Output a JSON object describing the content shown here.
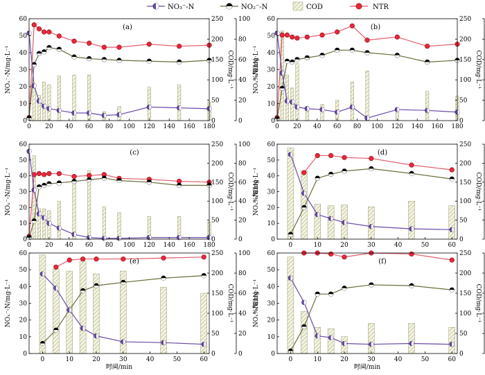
{
  "legend": {
    "nitrate": "NO₃⁻-N",
    "nitrite": "NO₂⁻-N",
    "cod": "COD",
    "ntr": "NTR"
  },
  "colors": {
    "nitrate": "#6a4aa8",
    "nitrite": "#6b6b3a",
    "ntr": "#e8283a",
    "cod_hatch": "#a8a878"
  },
  "xlabel": "时间/min",
  "left_ylabel": "NOₓ⁻-N/mg·L⁻¹",
  "cod_ylabel": "COD/mg·L⁻¹",
  "ntr_ylabel": "NTR/%",
  "chart_data": [
    {
      "panel": "(a)",
      "type": "bar+line",
      "xlim": [
        0,
        180
      ],
      "xticks": [
        0,
        20,
        40,
        60,
        80,
        100,
        120,
        140,
        160,
        180
      ],
      "left_ylim": [
        0,
        60
      ],
      "left_yticks": [
        0,
        10,
        20,
        30,
        40,
        50,
        60
      ],
      "cod_ylim": [
        0,
        250
      ],
      "cod_yticks": [
        0,
        50,
        100,
        150,
        200,
        250
      ],
      "ntr_ylim": [
        0,
        100
      ],
      "ntr_yticks": [
        0,
        20,
        40,
        60,
        80,
        100
      ],
      "cod_bars": {
        "x": [
          5,
          10,
          15,
          20,
          30,
          45,
          60,
          75,
          90,
          120,
          150,
          180
        ],
        "values": [
          85,
          62,
          95,
          88,
          110,
          112,
          112,
          22,
          35,
          82,
          88,
          45
        ]
      },
      "nitrate": {
        "x": [
          0,
          5,
          10,
          15,
          20,
          30,
          45,
          60,
          75,
          90,
          120,
          150,
          180
        ],
        "values": [
          51.5,
          20.5,
          11.5,
          8.5,
          7,
          6,
          4.5,
          4.5,
          3,
          3.5,
          8,
          7.5,
          7
        ]
      },
      "nitrite": {
        "x": [
          0,
          5,
          10,
          15,
          20,
          30,
          45,
          60,
          75,
          90,
          120,
          150,
          180
        ],
        "values": [
          1.5,
          33,
          39.5,
          40.5,
          43,
          42,
          37.5,
          36.5,
          36,
          35.5,
          35,
          34.5,
          35.5
        ]
      },
      "ntr": {
        "x": [
          0,
          5,
          10,
          15,
          20,
          30,
          45,
          60,
          75,
          90,
          120,
          150,
          180
        ],
        "values": [
          3,
          94,
          90,
          87,
          87,
          83,
          78,
          76,
          72,
          72,
          75,
          73,
          74
        ]
      }
    },
    {
      "panel": "(b)",
      "type": "bar+line",
      "xlim": [
        0,
        180
      ],
      "xticks": [
        0,
        20,
        40,
        60,
        80,
        100,
        120,
        140,
        160,
        180
      ],
      "left_ylim": [
        0,
        60
      ],
      "left_yticks": [
        0,
        10,
        20,
        30,
        40,
        50,
        60
      ],
      "cod_ylim": [
        0,
        250
      ],
      "cod_yticks": [
        0,
        50,
        100,
        150,
        200,
        250
      ],
      "ntr_ylim": [
        0,
        100
      ],
      "ntr_yticks": [
        0,
        20,
        40,
        60,
        80,
        100
      ],
      "cod_bars": {
        "x": [
          5,
          10,
          15,
          20,
          30,
          45,
          60,
          75,
          90,
          120,
          150,
          180
        ],
        "values": [
          220,
          112,
          80,
          140,
          35,
          40,
          50,
          95,
          122,
          25,
          72,
          60
        ]
      },
      "nitrate": {
        "x": [
          0,
          5,
          10,
          15,
          20,
          30,
          45,
          60,
          75,
          90,
          120,
          150,
          180
        ],
        "values": [
          51.5,
          28,
          11.5,
          11,
          8,
          7,
          6.5,
          5,
          8,
          1.5,
          6.5,
          6,
          5
        ]
      },
      "nitrite": {
        "x": [
          0,
          5,
          10,
          15,
          20,
          30,
          45,
          60,
          75,
          90,
          120,
          150,
          180
        ],
        "values": [
          1,
          19,
          35,
          34.5,
          36,
          37,
          38.5,
          41.5,
          41.5,
          40,
          38.5,
          34.5,
          35.5
        ]
      },
      "ntr": {
        "x": [
          0,
          5,
          10,
          15,
          20,
          30,
          45,
          60,
          75,
          90,
          120,
          150,
          180
        ],
        "values": [
          3,
          84,
          84,
          82,
          81,
          82,
          84,
          87,
          93,
          79,
          82,
          73,
          75
        ]
      }
    },
    {
      "panel": "(c)",
      "type": "bar+line",
      "xlim": [
        0,
        180
      ],
      "xticks": [
        0,
        20,
        40,
        60,
        80,
        100,
        120,
        140,
        160,
        180
      ],
      "left_ylim": [
        0,
        60
      ],
      "left_yticks": [
        0,
        10,
        20,
        30,
        40,
        50,
        60
      ],
      "cod_ylim": [
        0,
        250
      ],
      "cod_yticks": [
        0,
        50,
        100,
        150,
        200,
        250
      ],
      "ntr_ylim": [
        0,
        100
      ],
      "ntr_yticks": [
        0,
        20,
        40,
        60,
        80,
        100
      ],
      "cod_bars": {
        "x": [
          5,
          10,
          15,
          20,
          30,
          45,
          60,
          75,
          90,
          120,
          150,
          180
        ],
        "values": [
          220,
          80,
          80,
          75,
          100,
          150,
          180,
          85,
          70,
          60,
          60,
          45
        ]
      },
      "nitrate": {
        "x": [
          0,
          5,
          10,
          15,
          20,
          30,
          45,
          60,
          75,
          90,
          120,
          150,
          180
        ],
        "values": [
          55.5,
          31,
          16,
          13.5,
          10,
          7,
          3,
          1,
          0.5,
          0.5,
          1,
          1,
          1
        ]
      },
      "nitrite": {
        "x": [
          0,
          5,
          10,
          15,
          20,
          30,
          45,
          60,
          75,
          90,
          120,
          150,
          180
        ],
        "values": [
          1,
          11.5,
          33,
          34,
          35,
          35.5,
          36.5,
          37.5,
          38.5,
          37,
          36,
          34,
          34
        ]
      },
      "ntr": {
        "x": [
          0,
          5,
          10,
          15,
          20,
          30,
          45,
          60,
          75,
          90,
          120,
          150,
          180
        ],
        "values": [
          3,
          68,
          69,
          68,
          69,
          69,
          66,
          67,
          68,
          64,
          63,
          61,
          60
        ]
      }
    },
    {
      "panel": "(d)",
      "type": "bar+line",
      "xlim": [
        -5,
        62
      ],
      "xticks": [
        0,
        10,
        20,
        30,
        40,
        50,
        60
      ],
      "left_ylim": [
        0,
        60
      ],
      "left_yticks": [
        0,
        10,
        20,
        30,
        40,
        50,
        60
      ],
      "cod_ylim": [
        0,
        250
      ],
      "cod_yticks": [
        0,
        50,
        100,
        150,
        200,
        250
      ],
      "ntr_ylim": [
        0,
        100
      ],
      "ntr_yticks": [
        0,
        20,
        40,
        60,
        80,
        100
      ],
      "cod_bars": {
        "x": [
          0,
          5,
          10,
          15,
          20,
          30,
          45,
          60
        ],
        "values": [
          240,
          180,
          92,
          88,
          90,
          85,
          100,
          88
        ]
      },
      "nitrate": {
        "x": [
          0,
          5,
          10,
          15,
          20,
          30,
          45,
          60
        ],
        "values": [
          53.5,
          29,
          15.5,
          13,
          10.5,
          8,
          6.5,
          6
        ]
      },
      "nitrite": {
        "x": [
          0,
          5,
          10,
          15,
          20,
          30,
          45,
          60
        ],
        "values": [
          3,
          20,
          38.5,
          41,
          43,
          44.5,
          41.5,
          38
        ]
      },
      "ntr": {
        "x": [
          0,
          5,
          10,
          15,
          20,
          30,
          45,
          60
        ],
        "values": [
          null,
          70,
          88,
          88,
          86,
          85,
          78,
          73
        ]
      }
    },
    {
      "panel": "(e)",
      "type": "bar+line",
      "xlim": [
        -5,
        62
      ],
      "xticks": [
        0,
        10,
        20,
        30,
        40,
        50,
        60
      ],
      "left_ylim": [
        0,
        60
      ],
      "left_yticks": [
        0,
        10,
        20,
        30,
        40,
        50,
        60
      ],
      "cod_ylim": [
        0,
        250
      ],
      "cod_yticks": [
        0,
        50,
        100,
        150,
        200,
        250
      ],
      "ntr_ylim": [
        0,
        100
      ],
      "ntr_yticks": [
        0,
        20,
        40,
        60,
        80,
        100
      ],
      "cod_bars": {
        "x": [
          0,
          5,
          10,
          15,
          20,
          30,
          45,
          60
        ],
        "values": [
          245,
          210,
          205,
          230,
          198,
          205,
          165,
          150
        ]
      },
      "nitrate": {
        "x": [
          0,
          5,
          10,
          15,
          20,
          30,
          45,
          60
        ],
        "values": [
          47.5,
          39,
          26,
          15,
          10.5,
          7,
          6.5,
          5.5
        ]
      },
      "nitrite": {
        "x": [
          0,
          5,
          10,
          15,
          20,
          30,
          45,
          60
        ],
        "values": [
          6,
          14,
          26,
          37.5,
          40.5,
          42.5,
          45,
          46.5
        ]
      },
      "ntr": {
        "x": [
          0,
          5,
          10,
          15,
          20,
          30,
          45,
          60
        ],
        "values": [
          null,
          86,
          93,
          94,
          94,
          94,
          95,
          96
        ]
      }
    },
    {
      "panel": "(f)",
      "type": "bar+line",
      "xlim": [
        -5,
        62
      ],
      "xticks": [
        0,
        10,
        20,
        30,
        40,
        50,
        60
      ],
      "left_ylim": [
        0,
        60
      ],
      "left_yticks": [
        0,
        10,
        20,
        30,
        40,
        50,
        60
      ],
      "cod_ylim": [
        0,
        250
      ],
      "cod_yticks": [
        0,
        50,
        100,
        150,
        200,
        250
      ],
      "ntr_ylim": [
        0,
        100
      ],
      "ntr_yticks": [
        0,
        20,
        40,
        60,
        80,
        100
      ],
      "cod_bars": {
        "x": [
          0,
          5,
          10,
          15,
          20,
          30,
          45,
          60
        ],
        "values": [
          240,
          105,
          65,
          62,
          42,
          75,
          75,
          65
        ]
      },
      "nitrate": {
        "x": [
          0,
          5,
          10,
          15,
          20,
          30,
          45,
          60
        ],
        "values": [
          45,
          30.5,
          10.5,
          9.5,
          6,
          5.5,
          6,
          5.5
        ]
      },
      "nitrite": {
        "x": [
          0,
          5,
          10,
          15,
          20,
          30,
          45,
          60
        ],
        "values": [
          1.5,
          16,
          35.5,
          35.5,
          39,
          41,
          40.5,
          38
        ]
      },
      "ntr": {
        "x": [
          0,
          5,
          10,
          15,
          20,
          30,
          45,
          60
        ],
        "values": [
          null,
          100,
          100,
          99,
          96,
          100,
          99,
          93
        ]
      }
    }
  ]
}
